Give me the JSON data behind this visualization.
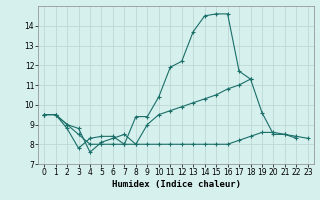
{
  "xlabel": "Humidex (Indice chaleur)",
  "bg_color": "#d6f0ee",
  "grid_color": "#c0d8d4",
  "line_color": "#1a6e68",
  "xlim": [
    -0.5,
    23.5
  ],
  "ylim": [
    7,
    15
  ],
  "yticks": [
    7,
    8,
    9,
    10,
    11,
    12,
    13,
    14
  ],
  "xticks": [
    0,
    1,
    2,
    3,
    4,
    5,
    6,
    7,
    8,
    9,
    10,
    11,
    12,
    13,
    14,
    15,
    16,
    17,
    18,
    19,
    20,
    21,
    22,
    23
  ],
  "line1_x": [
    0,
    1,
    2,
    3,
    4,
    5,
    6,
    7,
    8,
    9,
    10,
    11,
    12,
    13,
    14,
    15,
    16,
    17,
    18,
    19,
    20,
    21,
    22
  ],
  "line1_y": [
    9.5,
    9.5,
    8.8,
    7.8,
    8.3,
    8.4,
    8.4,
    8.0,
    9.4,
    9.4,
    10.4,
    11.9,
    12.2,
    13.7,
    14.5,
    14.6,
    14.6,
    11.7,
    11.3,
    9.6,
    8.5,
    8.5,
    8.3
  ],
  "line2_x": [
    0,
    1,
    2,
    3,
    4,
    5,
    6,
    7,
    8,
    9,
    10,
    11,
    12,
    13,
    14,
    15,
    16,
    17,
    18
  ],
  "line2_y": [
    9.5,
    9.5,
    9.0,
    8.8,
    7.6,
    8.1,
    8.3,
    8.5,
    8.0,
    9.0,
    9.5,
    9.7,
    9.9,
    10.1,
    10.3,
    10.5,
    10.8,
    11.0,
    11.3
  ],
  "line3_x": [
    0,
    1,
    2,
    3,
    4,
    5,
    6,
    7,
    8,
    9,
    10,
    11,
    12,
    13,
    14,
    15,
    16,
    17,
    18,
    19,
    20,
    21,
    22,
    23
  ],
  "line3_y": [
    9.5,
    9.5,
    9.0,
    8.5,
    8.0,
    8.0,
    8.0,
    8.0,
    8.0,
    8.0,
    8.0,
    8.0,
    8.0,
    8.0,
    8.0,
    8.0,
    8.0,
    8.2,
    8.4,
    8.6,
    8.6,
    8.5,
    8.4,
    8.3
  ]
}
